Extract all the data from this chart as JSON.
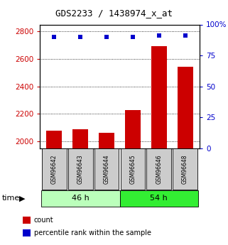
{
  "title": "GDS2233 / 1438974_x_at",
  "samples": [
    "GSM96642",
    "GSM96643",
    "GSM96644",
    "GSM96645",
    "GSM96646",
    "GSM96648"
  ],
  "counts": [
    2080,
    2090,
    2060,
    2230,
    2690,
    2545
  ],
  "percentile_ranks": [
    90,
    90,
    90,
    90,
    91,
    91
  ],
  "groups": [
    {
      "label": "46 h",
      "color": "#bbffbb",
      "indices": [
        0,
        1,
        2
      ]
    },
    {
      "label": "54 h",
      "color": "#33ee33",
      "indices": [
        3,
        4,
        5
      ]
    }
  ],
  "ylim_left": [
    1950,
    2850
  ],
  "ylim_right": [
    0,
    100
  ],
  "yticks_left": [
    2000,
    2200,
    2400,
    2600,
    2800
  ],
  "yticks_right": [
    0,
    25,
    50,
    75,
    100
  ],
  "ytick_labels_right": [
    "0",
    "25",
    "50",
    "75",
    "100%"
  ],
  "bar_color": "#cc0000",
  "scatter_color": "#0000cc",
  "bar_width": 0.6,
  "left_tick_color": "#cc0000",
  "right_tick_color": "#0000cc",
  "legend_items": [
    {
      "label": "count",
      "color": "#cc0000"
    },
    {
      "label": "percentile rank within the sample",
      "color": "#0000cc"
    }
  ],
  "sample_box_color": "#cccccc",
  "figsize": [
    3.21,
    3.45
  ],
  "dpi": 100
}
